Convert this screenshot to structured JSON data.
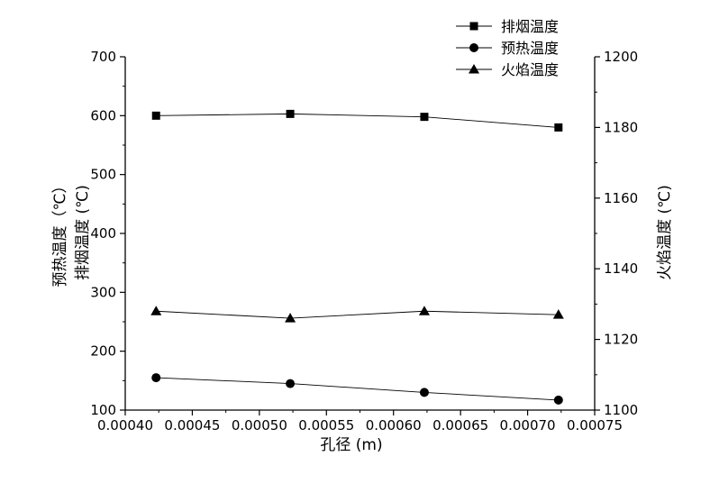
{
  "chart_data": {
    "type": "line",
    "xlabel": "孔径 (m)",
    "ylabel_left": [
      "预热温度（℃）",
      "排烟温度 (℃)"
    ],
    "ylabel_right": "火焰温度 (℃)",
    "x": [
      0.000423,
      0.000523,
      0.000623,
      0.000723
    ],
    "xlim": [
      0.0004,
      0.00075
    ],
    "ylim_left": [
      100,
      700
    ],
    "ylim_right": [
      1100,
      1200
    ],
    "x_ticks": [
      "0.00040",
      "0.00045",
      "0.00050",
      "0.00055",
      "0.00060",
      "0.00065",
      "0.00070",
      "0.00075"
    ],
    "y_left_ticks": [
      "100",
      "200",
      "300",
      "400",
      "500",
      "600",
      "700"
    ],
    "y_right_ticks": [
      "1100",
      "1120",
      "1140",
      "1160",
      "1180",
      "1200"
    ],
    "legend_position": "top-right",
    "grid": false,
    "series": [
      {
        "name": "排烟温度",
        "axis": "left",
        "marker": "square",
        "values": [
          600,
          603,
          598,
          580
        ]
      },
      {
        "name": "预热温度",
        "axis": "left",
        "marker": "circle",
        "values": [
          155,
          145,
          130,
          117
        ]
      },
      {
        "name": "火焰温度",
        "axis": "right",
        "marker": "triangle",
        "values": [
          1128,
          1126,
          1128,
          1127
        ]
      }
    ]
  }
}
